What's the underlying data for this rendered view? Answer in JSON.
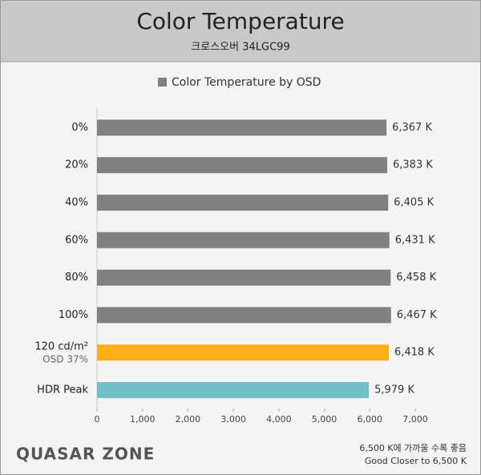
{
  "chart_data": {
    "type": "hbar",
    "title": "Color Temperature",
    "subtitle": "크로스오버 34LGC99",
    "categories": [
      "0%",
      "20%",
      "40%",
      "60%",
      "80%",
      "100%",
      "120 cd/m²",
      "HDR Peak"
    ],
    "category_notes": [
      null,
      null,
      null,
      null,
      null,
      null,
      "OSD 37%",
      null
    ],
    "series": [
      {
        "name": "Color Temperature by OSD",
        "color": "#808080",
        "colors": [
          "#808080",
          "#808080",
          "#808080",
          "#808080",
          "#808080",
          "#808080",
          "#fdb01b",
          "#72c1c7"
        ],
        "values": [
          6367,
          6383,
          6405,
          6431,
          6458,
          6467,
          6418,
          5979
        ],
        "value_labels": [
          "6,367 K",
          "6,383 K",
          "6,405 K",
          "6,431 K",
          "6,458 K",
          "6,467 K",
          "6,418 K",
          "5,979 K"
        ]
      }
    ],
    "xlim": [
      0,
      7000
    ],
    "xticks": [
      0,
      {
        "value": 1000,
        "label": "1,000"
      },
      {
        "value": 2000,
        "label": "2,000"
      },
      {
        "value": 3000,
        "label": "3,000"
      },
      {
        "value": 4000,
        "label": "4,000"
      },
      {
        "value": 5000,
        "label": "5,000"
      },
      {
        "value": 6000,
        "label": "6,000"
      },
      {
        "value": 7000,
        "label": "7,000"
      }
    ],
    "legend": "top"
  },
  "footer": {
    "logo": "QUASAR ZONE",
    "notes": [
      "6,500 K에 가까울 수록 좋음",
      "Good Closer to 6,500 K"
    ]
  }
}
